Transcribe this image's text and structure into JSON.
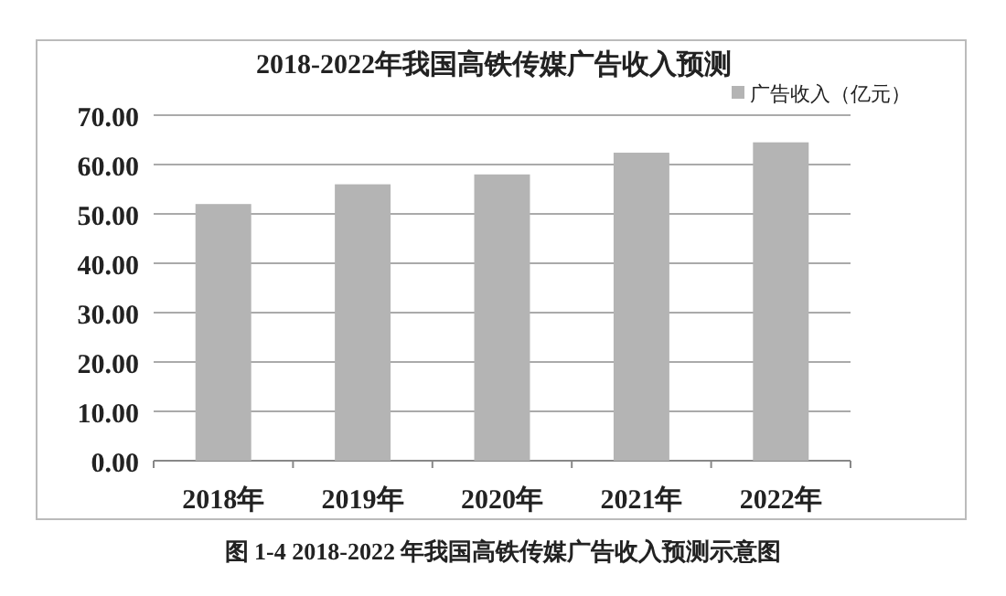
{
  "chart_data": {
    "type": "bar",
    "title": "2018-2022年我国高铁传媒广告收入预测",
    "categories": [
      "2018年",
      "2019年",
      "2020年",
      "2021年",
      "2022年"
    ],
    "series": [
      {
        "name": "广告收入（亿元）",
        "color": "#b4b4b4",
        "values": [
          52,
          56,
          58,
          62.4,
          64.5
        ]
      }
    ],
    "ylim": [
      0,
      70
    ],
    "yticks": [
      {
        "value": 0,
        "label": "0.00"
      },
      {
        "value": 10,
        "label": "10.00"
      },
      {
        "value": 20,
        "label": "20.00"
      },
      {
        "value": 30,
        "label": "30.00"
      },
      {
        "value": 40,
        "label": "40.00"
      },
      {
        "value": 50,
        "label": "50.00"
      },
      {
        "value": 60,
        "label": "60.00"
      },
      {
        "value": 70,
        "label": "70.00"
      }
    ],
    "grid": "y",
    "legend": "top right",
    "annotations": [
      "图 1-4 2018-2022 年我国高铁传媒广告收入预测示意图"
    ]
  }
}
